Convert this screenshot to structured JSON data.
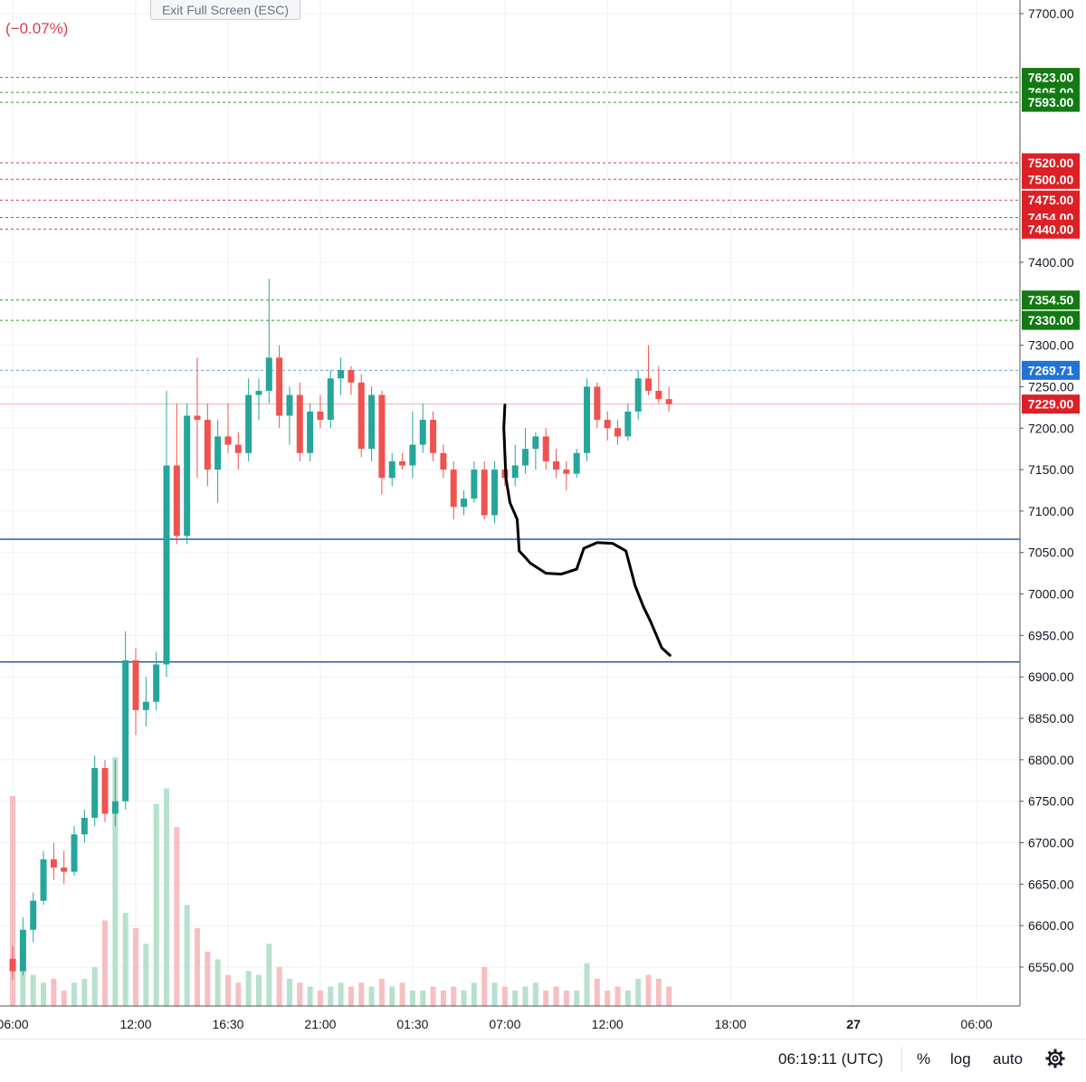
{
  "toolbar": {
    "exit_fullscreen_label": "Exit Full Screen (ESC)"
  },
  "header": {
    "change_text": "(−0.07%)"
  },
  "status_bar": {
    "time": "06:19:11 (UTC)",
    "percent_label": "%",
    "log_label": "log",
    "auto_label": "auto",
    "settings_icon": "gear-icon"
  },
  "colors": {
    "up": "#26a69a",
    "down": "#ef5350",
    "green_badge": "#137a13",
    "red_badge": "#dd1f26",
    "blue_badge": "#2273d8",
    "support_line": "#1452a6",
    "drawing": "#000000"
  },
  "chart_data": {
    "type": "candlestick",
    "timeframe": "30m",
    "y_axis": {
      "ticks": [
        7700,
        7400,
        7300,
        7250,
        7200,
        7150,
        7100,
        7050,
        7000,
        6950,
        6900,
        6850,
        6800,
        6750,
        6700,
        6650,
        6600,
        6550
      ],
      "tick_labels": [
        "7700.00",
        "7400.00",
        "7300.00",
        "7250.00",
        "7200.00",
        "7150.00",
        "7100.00",
        "7050.00",
        "7000.00",
        "6950.00",
        "6900.00",
        "6850.00",
        "6800.00",
        "6750.00",
        "6700.00",
        "6650.00",
        "6600.00",
        "6550.00"
      ],
      "range": [
        6500,
        7710
      ]
    },
    "x_axis": {
      "labels": [
        "06:00",
        "12:00",
        "16:30",
        "21:00",
        "01:30",
        "07:00",
        "12:00",
        "18:00",
        "27",
        "06:00"
      ],
      "bold_labels": [
        "27"
      ],
      "label_candle_index": [
        0,
        12,
        21,
        30,
        39,
        48,
        58,
        70,
        82,
        94
      ]
    },
    "price_levels": [
      {
        "value": 7623.0,
        "label": "7623.00",
        "kind": "green"
      },
      {
        "value": 7605.0,
        "label": "7605.00",
        "kind": "green"
      },
      {
        "value": 7593.0,
        "label": "7593.00",
        "kind": "green"
      },
      {
        "value": 7520.0,
        "label": "7520.00",
        "kind": "red"
      },
      {
        "value": 7500.0,
        "label": "7500.00",
        "kind": "red"
      },
      {
        "value": 7475.0,
        "label": "7475.00",
        "kind": "red"
      },
      {
        "value": 7454.0,
        "label": "7454.00",
        "kind": "red"
      },
      {
        "value": 7440.0,
        "label": "7440.00",
        "kind": "red"
      },
      {
        "value": 7354.5,
        "label": "7354.50",
        "kind": "green"
      },
      {
        "value": 7330.0,
        "label": "7330.00",
        "kind": "green"
      },
      {
        "value": 7269.71,
        "label": "7269.71",
        "kind": "blue"
      },
      {
        "value": 7229.0,
        "label": "7229.00",
        "kind": "last"
      }
    ],
    "horizontal_lines": [
      7066,
      6918
    ],
    "drawing_path": [
      [
        48.0,
        7228
      ],
      [
        47.9,
        7200
      ],
      [
        48.1,
        7140
      ],
      [
        48.5,
        7110
      ],
      [
        49.2,
        7090
      ],
      [
        49.4,
        7052
      ],
      [
        50.5,
        7037
      ],
      [
        52.0,
        7025
      ],
      [
        53.5,
        7024
      ],
      [
        55.0,
        7030
      ],
      [
        55.7,
        7055
      ],
      [
        57.0,
        7062
      ],
      [
        58.5,
        7061
      ],
      [
        59.8,
        7052
      ],
      [
        60.7,
        7010
      ],
      [
        61.5,
        6985
      ],
      [
        62.2,
        6967
      ],
      [
        63.3,
        6935
      ],
      [
        64.1,
        6926
      ]
    ],
    "candles": [
      {
        "o": 6560,
        "h": 6575,
        "l": 6535,
        "c": 6545,
        "v": 270
      },
      {
        "o": 6545,
        "h": 6610,
        "l": 6540,
        "c": 6595,
        "v": 60
      },
      {
        "o": 6595,
        "h": 6640,
        "l": 6580,
        "c": 6630,
        "v": 40
      },
      {
        "o": 6630,
        "h": 6690,
        "l": 6625,
        "c": 6680,
        "v": 30
      },
      {
        "o": 6680,
        "h": 6700,
        "l": 6655,
        "c": 6670,
        "v": 35
      },
      {
        "o": 6670,
        "h": 6690,
        "l": 6650,
        "c": 6665,
        "v": 20
      },
      {
        "o": 6665,
        "h": 6720,
        "l": 6660,
        "c": 6710,
        "v": 30
      },
      {
        "o": 6710,
        "h": 6740,
        "l": 6700,
        "c": 6730,
        "v": 35
      },
      {
        "o": 6730,
        "h": 6805,
        "l": 6720,
        "c": 6790,
        "v": 50
      },
      {
        "o": 6790,
        "h": 6800,
        "l": 6725,
        "c": 6735,
        "v": 110
      },
      {
        "o": 6735,
        "h": 6800,
        "l": 6720,
        "c": 6750,
        "v": 320
      },
      {
        "o": 6750,
        "h": 6955,
        "l": 6740,
        "c": 6920,
        "v": 120
      },
      {
        "o": 6920,
        "h": 6935,
        "l": 6830,
        "c": 6860,
        "v": 100
      },
      {
        "o": 6860,
        "h": 6900,
        "l": 6840,
        "c": 6870,
        "v": 80
      },
      {
        "o": 6870,
        "h": 6930,
        "l": 6860,
        "c": 6915,
        "v": 260
      },
      {
        "o": 6915,
        "h": 7245,
        "l": 6900,
        "c": 7155,
        "v": 280
      },
      {
        "o": 7155,
        "h": 7230,
        "l": 7060,
        "c": 7070,
        "v": 230
      },
      {
        "o": 7070,
        "h": 7230,
        "l": 7060,
        "c": 7215,
        "v": 130
      },
      {
        "o": 7215,
        "h": 7285,
        "l": 7140,
        "c": 7210,
        "v": 100
      },
      {
        "o": 7210,
        "h": 7230,
        "l": 7130,
        "c": 7150,
        "v": 70
      },
      {
        "o": 7150,
        "h": 7210,
        "l": 7110,
        "c": 7190,
        "v": 60
      },
      {
        "o": 7190,
        "h": 7230,
        "l": 7170,
        "c": 7180,
        "v": 40
      },
      {
        "o": 7180,
        "h": 7195,
        "l": 7150,
        "c": 7170,
        "v": 30
      },
      {
        "o": 7170,
        "h": 7260,
        "l": 7160,
        "c": 7240,
        "v": 45
      },
      {
        "o": 7240,
        "h": 7260,
        "l": 7210,
        "c": 7245,
        "v": 40
      },
      {
        "o": 7245,
        "h": 7380,
        "l": 7230,
        "c": 7285,
        "v": 80
      },
      {
        "o": 7285,
        "h": 7300,
        "l": 7200,
        "c": 7215,
        "v": 50
      },
      {
        "o": 7215,
        "h": 7250,
        "l": 7180,
        "c": 7240,
        "v": 35
      },
      {
        "o": 7240,
        "h": 7255,
        "l": 7160,
        "c": 7170,
        "v": 30
      },
      {
        "o": 7170,
        "h": 7230,
        "l": 7160,
        "c": 7220,
        "v": 25
      },
      {
        "o": 7220,
        "h": 7240,
        "l": 7200,
        "c": 7210,
        "v": 20
      },
      {
        "o": 7210,
        "h": 7270,
        "l": 7200,
        "c": 7260,
        "v": 25
      },
      {
        "o": 7260,
        "h": 7285,
        "l": 7240,
        "c": 7270,
        "v": 30
      },
      {
        "o": 7270,
        "h": 7275,
        "l": 7240,
        "c": 7255,
        "v": 25
      },
      {
        "o": 7255,
        "h": 7265,
        "l": 7165,
        "c": 7175,
        "v": 30
      },
      {
        "o": 7175,
        "h": 7250,
        "l": 7160,
        "c": 7240,
        "v": 25
      },
      {
        "o": 7240,
        "h": 7245,
        "l": 7120,
        "c": 7140,
        "v": 35
      },
      {
        "o": 7140,
        "h": 7170,
        "l": 7130,
        "c": 7160,
        "v": 25
      },
      {
        "o": 7160,
        "h": 7170,
        "l": 7150,
        "c": 7155,
        "v": 30
      },
      {
        "o": 7155,
        "h": 7220,
        "l": 7140,
        "c": 7180,
        "v": 20
      },
      {
        "o": 7180,
        "h": 7230,
        "l": 7170,
        "c": 7210,
        "v": 20
      },
      {
        "o": 7210,
        "h": 7220,
        "l": 7160,
        "c": 7170,
        "v": 25
      },
      {
        "o": 7170,
        "h": 7180,
        "l": 7140,
        "c": 7150,
        "v": 20
      },
      {
        "o": 7150,
        "h": 7160,
        "l": 7090,
        "c": 7105,
        "v": 25
      },
      {
        "o": 7105,
        "h": 7125,
        "l": 7095,
        "c": 7115,
        "v": 20
      },
      {
        "o": 7115,
        "h": 7160,
        "l": 7110,
        "c": 7150,
        "v": 30
      },
      {
        "o": 7150,
        "h": 7160,
        "l": 7090,
        "c": 7095,
        "v": 50
      },
      {
        "o": 7095,
        "h": 7160,
        "l": 7085,
        "c": 7150,
        "v": 30
      },
      {
        "o": 7150,
        "h": 7165,
        "l": 7130,
        "c": 7140,
        "v": 25
      },
      {
        "o": 7140,
        "h": 7180,
        "l": 7130,
        "c": 7155,
        "v": 20
      },
      {
        "o": 7155,
        "h": 7200,
        "l": 7145,
        "c": 7175,
        "v": 25
      },
      {
        "o": 7175,
        "h": 7195,
        "l": 7150,
        "c": 7190,
        "v": 30
      },
      {
        "o": 7190,
        "h": 7200,
        "l": 7150,
        "c": 7160,
        "v": 20
      },
      {
        "o": 7160,
        "h": 7175,
        "l": 7140,
        "c": 7150,
        "v": 25
      },
      {
        "o": 7150,
        "h": 7160,
        "l": 7125,
        "c": 7145,
        "v": 20
      },
      {
        "o": 7145,
        "h": 7175,
        "l": 7140,
        "c": 7170,
        "v": 20
      },
      {
        "o": 7170,
        "h": 7260,
        "l": 7160,
        "c": 7250,
        "v": 55
      },
      {
        "o": 7250,
        "h": 7255,
        "l": 7200,
        "c": 7210,
        "v": 35
      },
      {
        "o": 7210,
        "h": 7220,
        "l": 7185,
        "c": 7200,
        "v": 20
      },
      {
        "o": 7200,
        "h": 7210,
        "l": 7180,
        "c": 7190,
        "v": 25
      },
      {
        "o": 7190,
        "h": 7230,
        "l": 7185,
        "c": 7220,
        "v": 20
      },
      {
        "o": 7220,
        "h": 7270,
        "l": 7210,
        "c": 7260,
        "v": 35
      },
      {
        "o": 7260,
        "h": 7300,
        "l": 7240,
        "c": 7245,
        "v": 40
      },
      {
        "o": 7245,
        "h": 7275,
        "l": 7230,
        "c": 7235,
        "v": 35
      },
      {
        "o": 7235,
        "h": 7250,
        "l": 7220,
        "c": 7229,
        "v": 25
      }
    ],
    "candle_x_offset": 12,
    "volume_max": 320
  }
}
